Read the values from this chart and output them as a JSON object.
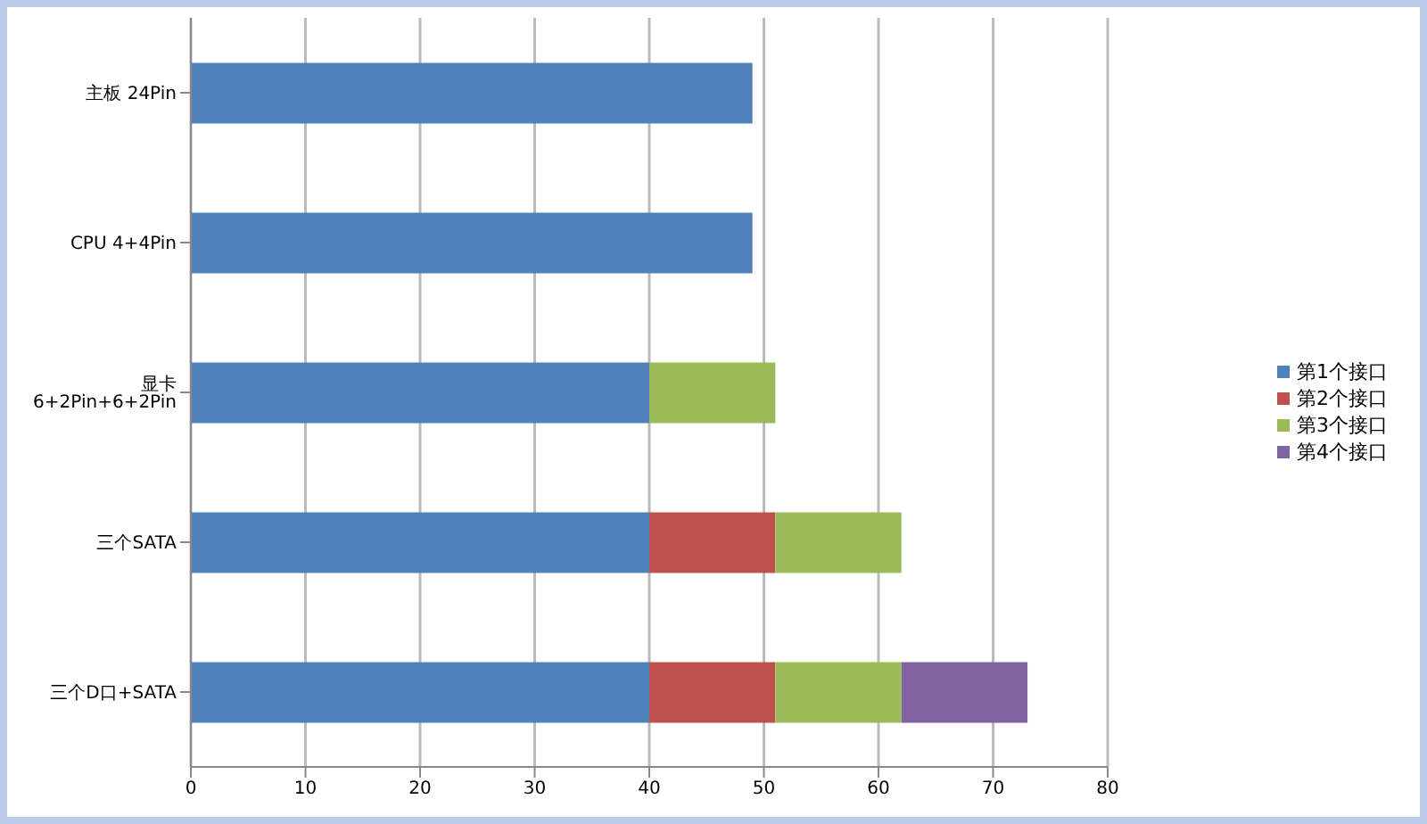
{
  "chart_data": {
    "type": "bar",
    "orientation": "horizontal",
    "stacked": true,
    "categories": [
      "主板 24Pin",
      "CPU 4+4Pin",
      "显卡 6+2Pin+6+2Pin",
      "三个SATA",
      "三个D口+SATA"
    ],
    "series": [
      {
        "name": "第1个接口",
        "color": "#4f81bd",
        "values": [
          49,
          49,
          40,
          40,
          40
        ]
      },
      {
        "name": "第2个接口",
        "color": "#c0504d",
        "values": [
          null,
          null,
          null,
          11,
          11
        ]
      },
      {
        "name": "第3个接口",
        "color": "#9bbb59",
        "values": [
          null,
          null,
          11,
          11,
          11
        ]
      },
      {
        "name": "第4个接口",
        "color": "#8064a2",
        "values": [
          null,
          null,
          null,
          null,
          11
        ]
      }
    ],
    "xlim": [
      0,
      80
    ],
    "xticks": [
      0,
      10,
      20,
      30,
      40,
      50,
      60,
      70,
      80
    ],
    "grid": "x",
    "legend": "right"
  }
}
